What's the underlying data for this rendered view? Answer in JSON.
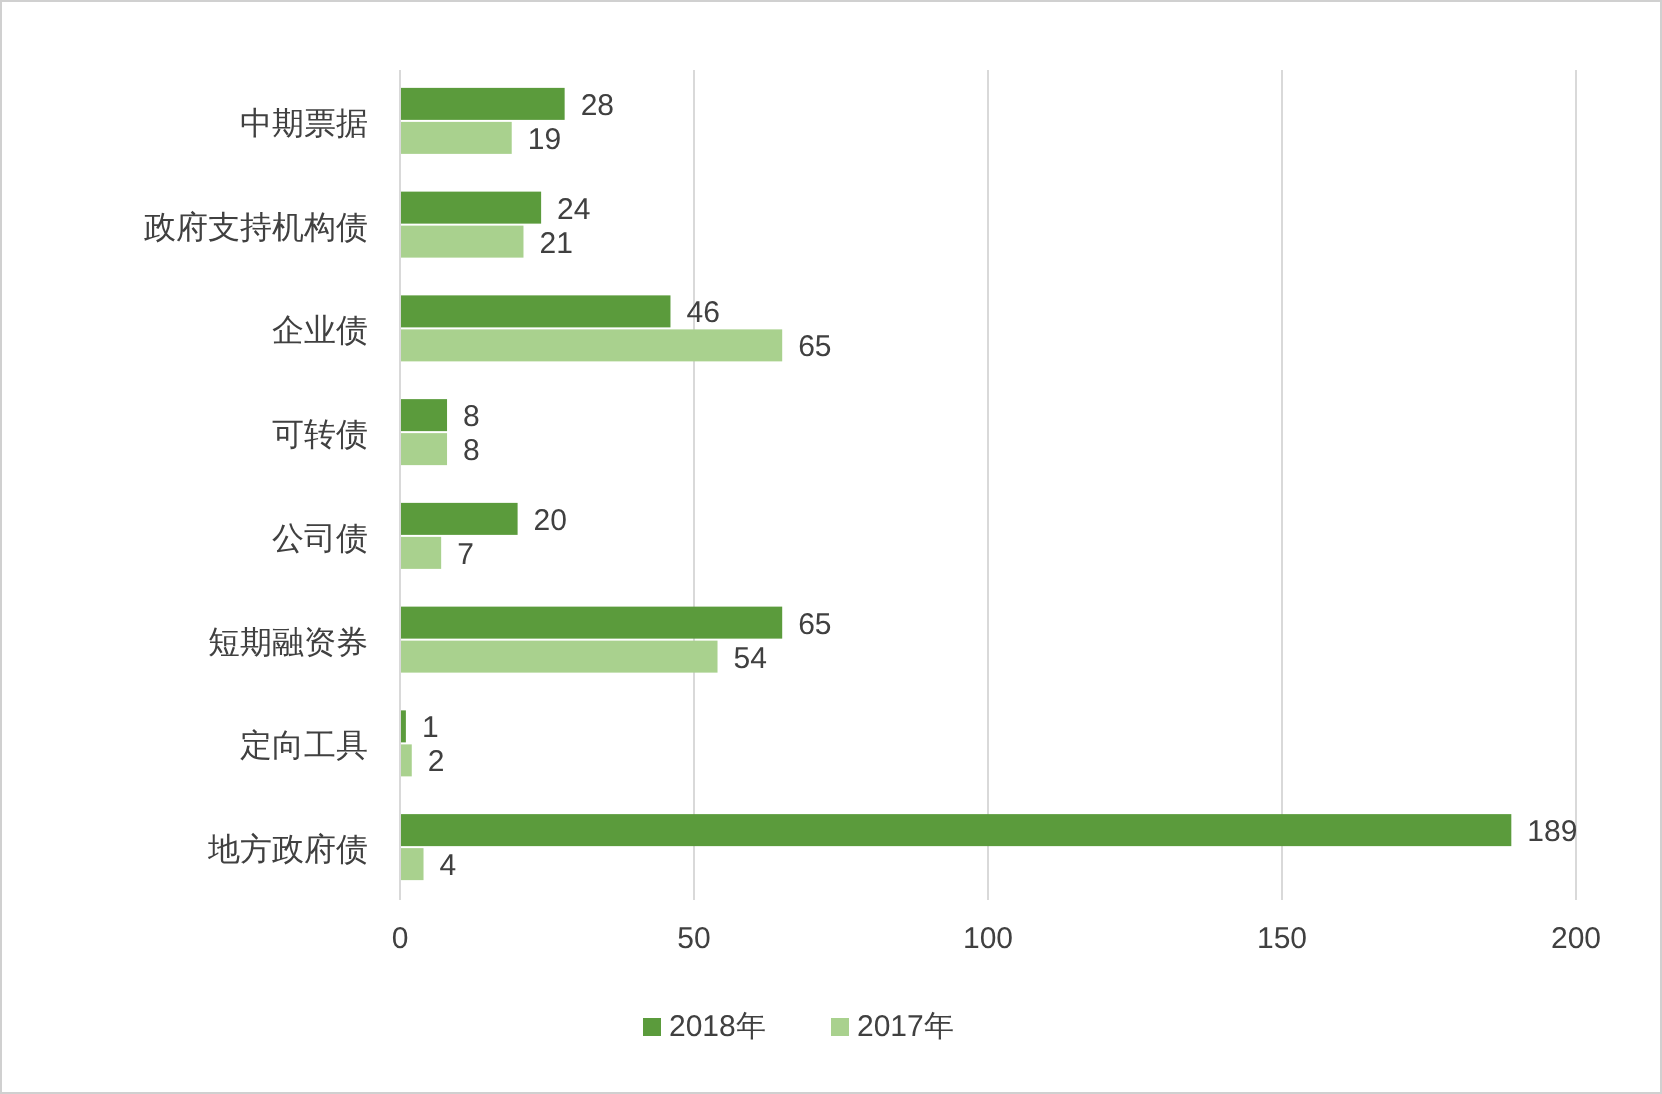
{
  "chart_data": {
    "type": "bar",
    "orientation": "horizontal",
    "categories": [
      "中期票据",
      "政府支持机构债",
      "企业债",
      "可转债",
      "公司债",
      "短期融资券",
      "定向工具",
      "地方政府债"
    ],
    "series": [
      {
        "name": "2018年",
        "color": "#5b9b3c",
        "values": [
          28,
          24,
          46,
          8,
          20,
          65,
          1,
          189
        ]
      },
      {
        "name": "2017年",
        "color": "#a9d18e",
        "values": [
          19,
          21,
          65,
          8,
          7,
          54,
          2,
          4
        ]
      }
    ],
    "xlim": [
      0,
      200
    ],
    "xticks": [
      0,
      50,
      100,
      150,
      200
    ],
    "grid": "x",
    "legend": "bottom",
    "data_labels": true
  }
}
